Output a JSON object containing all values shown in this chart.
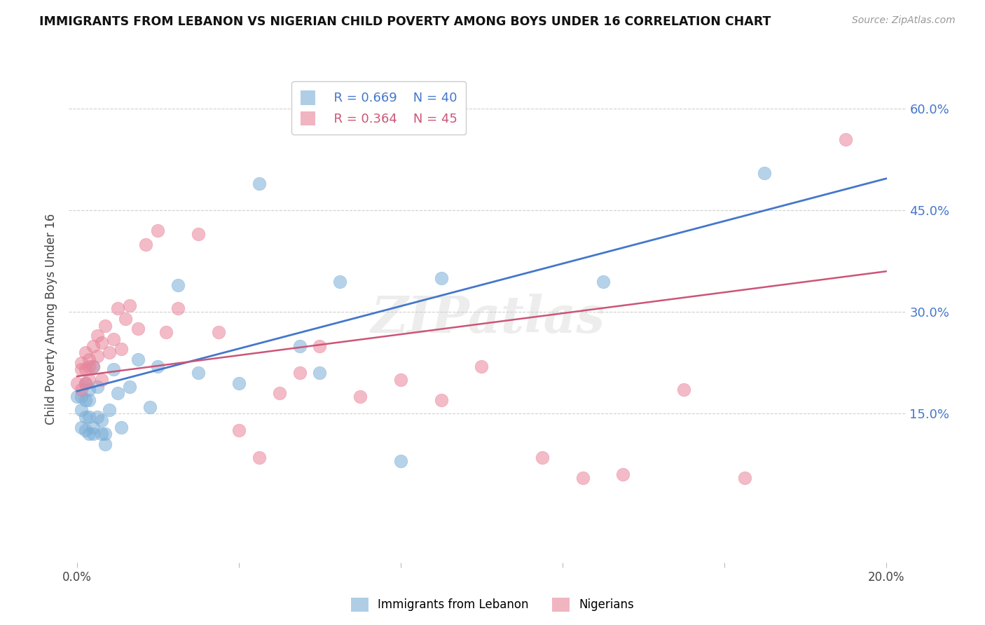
{
  "title": "IMMIGRANTS FROM LEBANON VS NIGERIAN CHILD POVERTY AMONG BOYS UNDER 16 CORRELATION CHART",
  "source": "Source: ZipAtlas.com",
  "ylabel": "Child Poverty Among Boys Under 16",
  "background_color": "#ffffff",
  "grid_color": "#d0d0d0",
  "xlim": [
    -0.002,
    0.205
  ],
  "ylim": [
    -0.07,
    0.65
  ],
  "right_yticks": [
    0.15,
    0.3,
    0.45,
    0.6
  ],
  "right_yticklabels": [
    "15.0%",
    "30.0%",
    "45.0%",
    "60.0%"
  ],
  "lebanon_R": "0.669",
  "lebanon_N": "40",
  "nigeria_R": "0.364",
  "nigeria_N": "45",
  "blue_color": "#7aaed6",
  "pink_color": "#e8849a",
  "blue_line_color": "#4477cc",
  "pink_line_color": "#cc5577",
  "lebanon_x": [
    0.0,
    0.001,
    0.001,
    0.001,
    0.002,
    0.002,
    0.002,
    0.002,
    0.003,
    0.003,
    0.003,
    0.003,
    0.004,
    0.004,
    0.004,
    0.005,
    0.005,
    0.006,
    0.006,
    0.007,
    0.007,
    0.008,
    0.009,
    0.01,
    0.011,
    0.013,
    0.015,
    0.018,
    0.02,
    0.025,
    0.03,
    0.04,
    0.045,
    0.055,
    0.06,
    0.065,
    0.08,
    0.09,
    0.13,
    0.17
  ],
  "lebanon_y": [
    0.175,
    0.155,
    0.13,
    0.175,
    0.125,
    0.145,
    0.17,
    0.195,
    0.12,
    0.145,
    0.17,
    0.185,
    0.12,
    0.13,
    0.22,
    0.145,
    0.19,
    0.12,
    0.14,
    0.105,
    0.12,
    0.155,
    0.215,
    0.18,
    0.13,
    0.19,
    0.23,
    0.16,
    0.22,
    0.34,
    0.21,
    0.195,
    0.49,
    0.25,
    0.21,
    0.345,
    0.08,
    0.35,
    0.345,
    0.505
  ],
  "nigeria_x": [
    0.0,
    0.001,
    0.001,
    0.001,
    0.002,
    0.002,
    0.002,
    0.003,
    0.003,
    0.003,
    0.004,
    0.004,
    0.005,
    0.005,
    0.006,
    0.006,
    0.007,
    0.008,
    0.009,
    0.01,
    0.011,
    0.012,
    0.013,
    0.015,
    0.017,
    0.02,
    0.022,
    0.025,
    0.03,
    0.035,
    0.04,
    0.045,
    0.05,
    0.055,
    0.06,
    0.07,
    0.08,
    0.09,
    0.1,
    0.115,
    0.125,
    0.135,
    0.15,
    0.165,
    0.19
  ],
  "nigeria_y": [
    0.195,
    0.225,
    0.185,
    0.215,
    0.215,
    0.195,
    0.24,
    0.2,
    0.22,
    0.23,
    0.25,
    0.22,
    0.235,
    0.265,
    0.255,
    0.2,
    0.28,
    0.24,
    0.26,
    0.305,
    0.245,
    0.29,
    0.31,
    0.275,
    0.4,
    0.42,
    0.27,
    0.305,
    0.415,
    0.27,
    0.125,
    0.085,
    0.18,
    0.21,
    0.25,
    0.175,
    0.2,
    0.17,
    0.22,
    0.085,
    0.055,
    0.06,
    0.185,
    0.055,
    0.555
  ],
  "leb_line_x": [
    0.0,
    0.2
  ],
  "leb_line_y": [
    0.183,
    0.497
  ],
  "nig_line_x": [
    0.0,
    0.2
  ],
  "nig_line_y": [
    0.205,
    0.36
  ]
}
